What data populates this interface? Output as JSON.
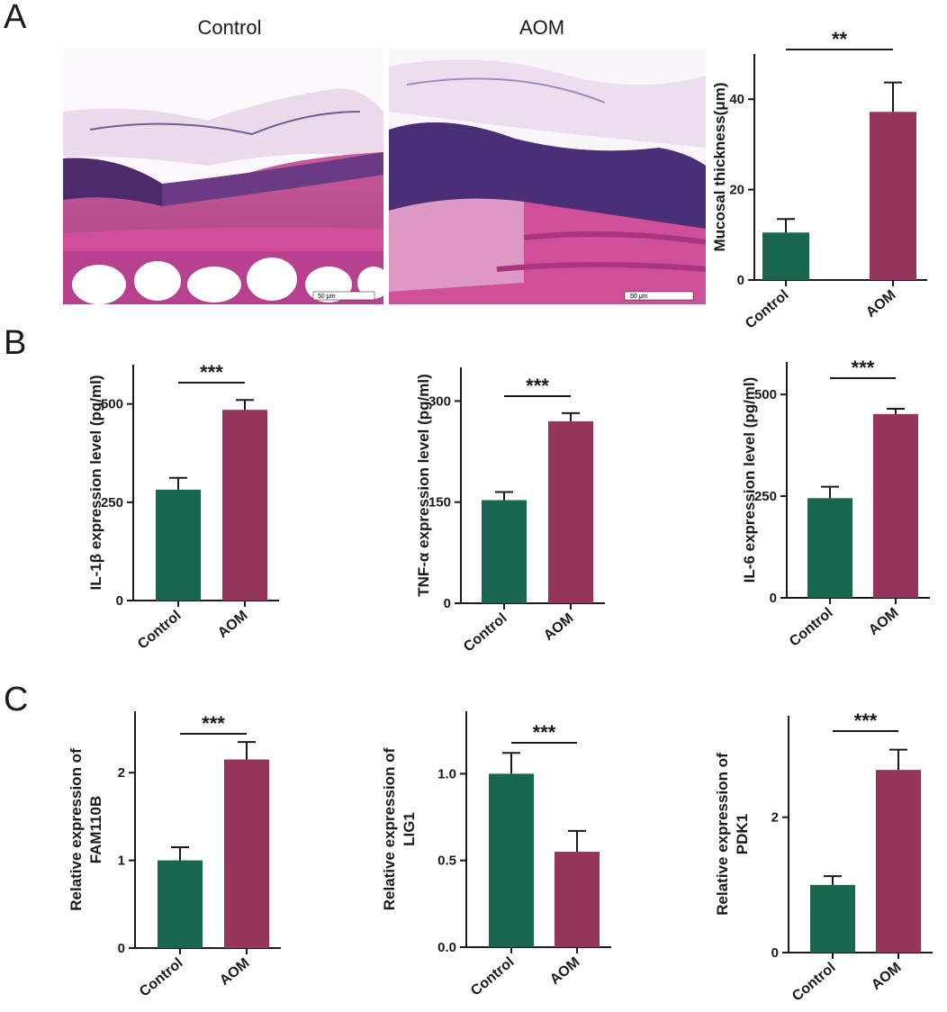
{
  "panels": {
    "a": "A",
    "b": "B",
    "c": "C"
  },
  "images": {
    "control_title": "Control",
    "aom_title": "AOM",
    "scale_label": "50 μm"
  },
  "colors": {
    "control": "#186650",
    "aom": "#96355c"
  },
  "chart_data": [
    {
      "type": "bar",
      "panel": "A",
      "categories": [
        "Control",
        "AOM"
      ],
      "values": [
        10.5,
        37.2
      ],
      "errors": [
        3.0,
        6.5
      ],
      "ylim": [
        0,
        50
      ],
      "yticks": [
        0,
        20,
        40
      ],
      "ylabel": [
        "Mucosal thickness(μm)"
      ],
      "significance": "**"
    },
    {
      "type": "bar",
      "panel": "B",
      "categories": [
        "Control",
        "AOM"
      ],
      "values": [
        282,
        485
      ],
      "errors": [
        30,
        25
      ],
      "ylim": [
        0,
        600
      ],
      "yticks": [
        0,
        250,
        500
      ],
      "ylabel": [
        "IL-1β  expression level (pg/ml)"
      ],
      "significance": "***"
    },
    {
      "type": "bar",
      "panel": "B",
      "categories": [
        "Control",
        "AOM"
      ],
      "values": [
        153,
        270
      ],
      "errors": [
        12,
        12
      ],
      "ylim": [
        0,
        350
      ],
      "yticks": [
        0,
        150,
        300
      ],
      "ylabel": [
        "TNF-α  expression level (pg/ml)"
      ],
      "significance": "***"
    },
    {
      "type": "bar",
      "panel": "B",
      "categories": [
        "Control",
        "AOM"
      ],
      "values": [
        245,
        452
      ],
      "errors": [
        28,
        13
      ],
      "ylim": [
        0,
        580
      ],
      "yticks": [
        0,
        250,
        500
      ],
      "ylabel": [
        "IL-6  expression level (pg/ml)"
      ],
      "significance": "***"
    },
    {
      "type": "bar",
      "panel": "C",
      "categories": [
        "Control",
        "AOM"
      ],
      "values": [
        1.0,
        2.15
      ],
      "errors": [
        0.15,
        0.2
      ],
      "ylim": [
        0,
        2.7
      ],
      "yticks": [
        0,
        1,
        2
      ],
      "ylabel": [
        "Relative expression of",
        "FAM110B"
      ],
      "significance": "***"
    },
    {
      "type": "bar",
      "panel": "C",
      "categories": [
        "Control",
        "AOM"
      ],
      "values": [
        1.0,
        0.55
      ],
      "errors": [
        0.12,
        0.12
      ],
      "ylim": [
        0,
        1.36
      ],
      "yticks": [
        "0.0",
        "0.5",
        "1.0"
      ],
      "ylabel": [
        "Relative expression of",
        "LIG1"
      ],
      "significance": "***"
    },
    {
      "type": "bar",
      "panel": "C",
      "categories": [
        "Control",
        "AOM"
      ],
      "values": [
        1.0,
        2.7
      ],
      "errors": [
        0.13,
        0.3
      ],
      "ylim": [
        0,
        3.5
      ],
      "yticks": [
        0,
        2
      ],
      "ylabel": [
        "Relative expression of",
        "PDK1"
      ],
      "significance": "***"
    }
  ]
}
